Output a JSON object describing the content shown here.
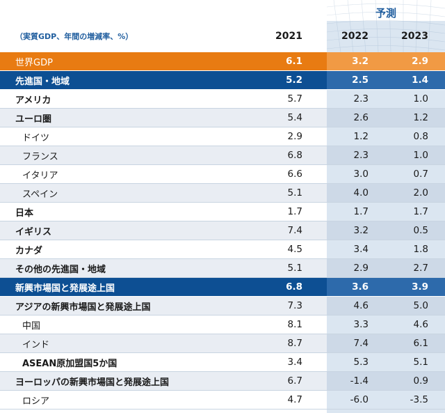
{
  "header": {
    "forecast_label": "予測",
    "unit_note": "（実質GDP、年間の増減率、%）",
    "years": [
      "2021",
      "2022",
      "2023"
    ]
  },
  "rows": [
    {
      "label": "世界GDP",
      "values": [
        "6.1",
        "3.2",
        "2.9"
      ]
    },
    {
      "label": "先進国・地域",
      "values": [
        "5.2",
        "2.5",
        "1.4"
      ]
    },
    {
      "label": "アメリカ",
      "values": [
        "5.7",
        "2.3",
        "1.0"
      ]
    },
    {
      "label": "ユーロ圏",
      "values": [
        "5.4",
        "2.6",
        "1.2"
      ]
    },
    {
      "label": "ドイツ",
      "values": [
        "2.9",
        "1.2",
        "0.8"
      ]
    },
    {
      "label": "フランス",
      "values": [
        "6.8",
        "2.3",
        "1.0"
      ]
    },
    {
      "label": "イタリア",
      "values": [
        "6.6",
        "3.0",
        "0.7"
      ]
    },
    {
      "label": "スペイン",
      "values": [
        "5.1",
        "4.0",
        "2.0"
      ]
    },
    {
      "label": "日本",
      "values": [
        "1.7",
        "1.7",
        "1.7"
      ]
    },
    {
      "label": "イギリス",
      "values": [
        "7.4",
        "3.2",
        "0.5"
      ]
    },
    {
      "label": "カナダ",
      "values": [
        "4.5",
        "3.4",
        "1.8"
      ]
    },
    {
      "label": "その他の先進国・地域",
      "values": [
        "5.1",
        "2.9",
        "2.7"
      ]
    },
    {
      "label": "新興市場国と発展途上国",
      "values": [
        "6.8",
        "3.6",
        "3.9"
      ]
    },
    {
      "label": "アジアの新興市場国と発展途上国",
      "values": [
        "7.3",
        "4.6",
        "5.0"
      ]
    },
    {
      "label": "中国",
      "values": [
        "8.1",
        "3.3",
        "4.6"
      ]
    },
    {
      "label": "インド",
      "values": [
        "8.7",
        "7.4",
        "6.1"
      ]
    },
    {
      "label": "ASEAN原加盟国5か国",
      "values": [
        "3.4",
        "5.3",
        "5.1"
      ]
    },
    {
      "label": "ヨーロッパの新興市場国と発展途上国",
      "values": [
        "6.7",
        "-1.4",
        "0.9"
      ]
    },
    {
      "label": "ロシア",
      "values": [
        "4.7",
        "-6.0",
        "-3.5"
      ]
    }
  ],
  "colors": {
    "world_row": "#e87b12",
    "group_row": "#0d4f93",
    "forecast_bg": "#dbe6f1",
    "accent_text": "#1f5d9e"
  }
}
